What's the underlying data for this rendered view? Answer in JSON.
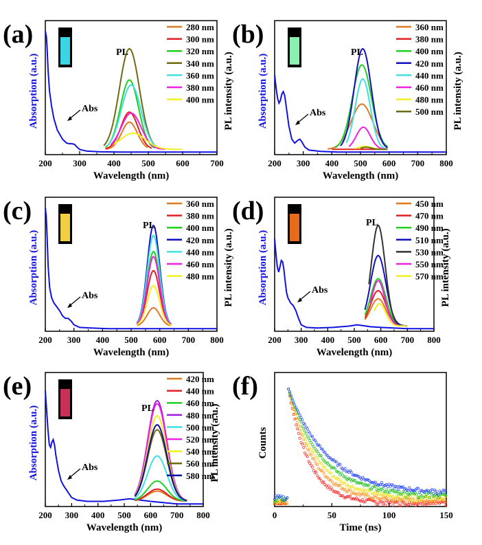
{
  "figure": {
    "panel_count": 6
  },
  "chart_data": [
    {
      "panel": "(a)",
      "type": "line",
      "xlabel": "Wavelength (nm)",
      "ylabel_left": "Absorption (a.u.)",
      "ylabel_right": "PL intensity (a.u.)",
      "xlim": [
        200,
        700
      ],
      "xticks": [
        200,
        300,
        400,
        500,
        600,
        700
      ],
      "annotations": [
        "Abs",
        "PL"
      ],
      "vial_color": "#3ad6e6",
      "abs": {
        "color": "#1212e0",
        "x": [
          200,
          203,
          205,
          208,
          212,
          218,
          225,
          235,
          250,
          262,
          270,
          278,
          285,
          292,
          300,
          320,
          360,
          420,
          500,
          600,
          700
        ],
        "y": [
          0.96,
          0.92,
          0.84,
          0.66,
          0.5,
          0.38,
          0.28,
          0.19,
          0.12,
          0.09,
          0.085,
          0.085,
          0.08,
          0.06,
          0.04,
          0.028,
          0.022,
          0.02,
          0.02,
          0.02,
          0.02
        ]
      },
      "pl_range": [
        370,
        600
      ],
      "series": [
        {
          "name": "280 nm",
          "color": "#e07820",
          "peak": 445,
          "height": 0.27,
          "start": 375,
          "end": 500
        },
        {
          "name": "300 nm",
          "color": "#e02020",
          "peak": 445,
          "height": 0.37,
          "start": 375,
          "end": 510
        },
        {
          "name": "320 nm",
          "color": "#20d020",
          "peak": 445,
          "height": 0.69,
          "start": 375,
          "end": 520
        },
        {
          "name": "340 nm",
          "color": "#6e6a10",
          "peak": 445,
          "height": 1.0,
          "start": 370,
          "end": 530
        },
        {
          "name": "360 nm",
          "color": "#40e0e0",
          "peak": 450,
          "height": 0.64,
          "start": 380,
          "end": 540
        },
        {
          "name": "380 nm",
          "color": "#f020e0",
          "peak": 450,
          "height": 0.36,
          "start": 390,
          "end": 550
        },
        {
          "name": "400 nm",
          "color": "#f0f020",
          "peak": 455,
          "height": 0.16,
          "start": 400,
          "end": 600
        }
      ]
    },
    {
      "panel": "(b)",
      "type": "line",
      "xlabel": "Wavelength (nm)",
      "ylabel_left": "Absorption (a.u.)",
      "ylabel_right": "PL intensity (a.u.)",
      "xlim": [
        200,
        800
      ],
      "xticks": [
        200,
        300,
        400,
        500,
        600,
        700,
        800
      ],
      "annotations": [
        "Abs",
        "PL"
      ],
      "vial_color": "#8af0b0",
      "abs": {
        "color": "#1212e0",
        "x": [
          200,
          205,
          210,
          215,
          220,
          225,
          230,
          235,
          240,
          250,
          260,
          270,
          280,
          288,
          295,
          305,
          320,
          360,
          420,
          500,
          600,
          700,
          800
        ],
        "y": [
          0.62,
          0.52,
          0.44,
          0.4,
          0.42,
          0.47,
          0.49,
          0.46,
          0.38,
          0.22,
          0.12,
          0.09,
          0.11,
          0.12,
          0.1,
          0.06,
          0.035,
          0.025,
          0.02,
          0.02,
          0.02,
          0.02,
          0.02
        ]
      },
      "pl_range": [
        380,
        600
      ],
      "series": [
        {
          "name": "360 nm",
          "color": "#e07820",
          "peak": 505,
          "height": 0.45,
          "start": 385,
          "end": 595
        },
        {
          "name": "380 nm",
          "color": "#e02020",
          "peak": 505,
          "height": 0.0,
          "start": 400,
          "end": 595
        },
        {
          "name": "400 nm",
          "color": "#20d020",
          "peak": 505,
          "height": 0.84,
          "start": 410,
          "end": 595
        },
        {
          "name": "420 nm",
          "color": "#1010c0",
          "peak": 508,
          "height": 1.0,
          "start": 430,
          "end": 595
        },
        {
          "name": "440 nm",
          "color": "#40e0e0",
          "peak": 508,
          "height": 0.7,
          "start": 450,
          "end": 595
        },
        {
          "name": "460 nm",
          "color": "#f020e0",
          "peak": 510,
          "height": 0.22,
          "start": 460,
          "end": 595
        },
        {
          "name": "480 nm",
          "color": "#f0f020",
          "peak": 515,
          "height": 0.03,
          "start": 480,
          "end": 595
        },
        {
          "name": "500 nm",
          "color": "#6e6a10",
          "peak": 520,
          "height": 0.02,
          "start": 500,
          "end": 595
        }
      ]
    },
    {
      "panel": "(c)",
      "type": "line",
      "xlabel": "Wavelength (nm)",
      "ylabel_left": "Absorption (a.u.)",
      "ylabel_right": "PL intensity (a.u.)",
      "xlim": [
        200,
        800
      ],
      "xticks": [
        200,
        300,
        400,
        500,
        600,
        700,
        800
      ],
      "annotations": [
        "Abs",
        "PL"
      ],
      "vial_color": "#f0d040",
      "abs": {
        "color": "#1212e0",
        "x": [
          200,
          203,
          206,
          210,
          215,
          222,
          230,
          240,
          250,
          260,
          270,
          280,
          290,
          300,
          320,
          360,
          420,
          500,
          600,
          700,
          800
        ],
        "y": [
          0.96,
          0.9,
          0.75,
          0.5,
          0.34,
          0.26,
          0.22,
          0.19,
          0.16,
          0.12,
          0.1,
          0.1,
          0.08,
          0.05,
          0.03,
          0.025,
          0.02,
          0.02,
          0.02,
          0.02,
          0.02
        ]
      },
      "pl_range": [
        520,
        640
      ],
      "series": [
        {
          "name": "360 nm",
          "color": "#e07820",
          "peak": 578,
          "height": 0.18,
          "start": 520,
          "end": 640
        },
        {
          "name": "380 nm",
          "color": "#e02020",
          "peak": 578,
          "height": 0.55,
          "start": 520,
          "end": 640
        },
        {
          "name": "400 nm",
          "color": "#20d020",
          "peak": 578,
          "height": 0.74,
          "start": 520,
          "end": 640
        },
        {
          "name": "420 nm",
          "color": "#1010c0",
          "peak": 578,
          "height": 1.0,
          "start": 520,
          "end": 640
        },
        {
          "name": "440 nm",
          "color": "#40e0e0",
          "peak": 578,
          "height": 0.9,
          "start": 520,
          "end": 640
        },
        {
          "name": "460 nm",
          "color": "#f020e0",
          "peak": 578,
          "height": 0.69,
          "start": 520,
          "end": 640
        },
        {
          "name": "480 nm",
          "color": "#f0f020",
          "peak": 578,
          "height": 0.4,
          "start": 520,
          "end": 640
        }
      ]
    },
    {
      "panel": "(d)",
      "type": "line",
      "xlabel": "Wavelength (nm)",
      "ylabel_left": "Absorption (a.u.)",
      "ylabel_right": "PL intensity (a.u.)",
      "xlim": [
        200,
        800
      ],
      "xticks": [
        200,
        300,
        400,
        500,
        600,
        700,
        800
      ],
      "annotations": [
        "Abs",
        "PL"
      ],
      "vial_color": "#e86a1a",
      "abs": {
        "color": "#1212e0",
        "x": [
          200,
          205,
          210,
          215,
          220,
          225,
          230,
          235,
          240,
          245,
          250,
          260,
          270,
          280,
          290,
          300,
          320,
          360,
          420,
          480,
          510,
          530,
          560,
          600,
          700,
          800
        ],
        "y": [
          0.72,
          0.6,
          0.5,
          0.46,
          0.5,
          0.55,
          0.54,
          0.48,
          0.38,
          0.3,
          0.26,
          0.22,
          0.2,
          0.16,
          0.1,
          0.05,
          0.03,
          0.025,
          0.03,
          0.04,
          0.05,
          0.045,
          0.035,
          0.03,
          0.02,
          0.02
        ]
      },
      "pl_range": [
        540,
        700
      ],
      "series": [
        {
          "name": "450 nm",
          "color": "#e07820",
          "peak": 590,
          "height": 0.27,
          "start": 540,
          "end": 700
        },
        {
          "name": "470 nm",
          "color": "#e02020",
          "peak": 590,
          "height": 0.35,
          "start": 540,
          "end": 700
        },
        {
          "name": "490 nm",
          "color": "#20d020",
          "peak": 590,
          "height": 0.47,
          "start": 540,
          "end": 700
        },
        {
          "name": "510 nm",
          "color": "#1010c0",
          "peak": 590,
          "height": 0.7,
          "start": 540,
          "end": 700
        },
        {
          "name": "530 nm",
          "color": "#333333",
          "peak": 590,
          "height": 1.0,
          "start": 555,
          "end": 700
        },
        {
          "name": "550 nm",
          "color": "#f020e0",
          "peak": 590,
          "height": 0.45,
          "start": 560,
          "end": 700
        },
        {
          "name": "570 nm",
          "color": "#f0f020",
          "peak": 595,
          "height": 0.22,
          "start": 575,
          "end": 700
        }
      ]
    },
    {
      "panel": "(e)",
      "type": "line",
      "xlabel": "Wavelength (nm)",
      "ylabel_left": "Absorption (a.u.)",
      "ylabel_right": "PL intensity (a.u.)",
      "xlim": [
        200,
        800
      ],
      "xticks": [
        200,
        300,
        400,
        500,
        600,
        700,
        800
      ],
      "annotations": [
        "Abs",
        "PL"
      ],
      "vial_color": "#c8305a",
      "abs": {
        "color": "#1212e0",
        "x": [
          200,
          205,
          210,
          215,
          220,
          225,
          230,
          235,
          240,
          250,
          260,
          270,
          280,
          290,
          300,
          320,
          360,
          420,
          480,
          520,
          560,
          600,
          650,
          700,
          750,
          800
        ],
        "y": [
          0.9,
          0.75,
          0.6,
          0.48,
          0.46,
          0.5,
          0.52,
          0.48,
          0.4,
          0.28,
          0.2,
          0.16,
          0.13,
          0.1,
          0.07,
          0.05,
          0.04,
          0.04,
          0.05,
          0.06,
          0.05,
          0.04,
          0.03,
          0.02,
          0.02,
          0.02
        ]
      },
      "pl_range": [
        540,
        740
      ],
      "series": [
        {
          "name": "420 nm",
          "color": "#e07820",
          "peak": 625,
          "height": 0.1,
          "start": 540,
          "end": 740
        },
        {
          "name": "440 nm",
          "color": "#e02020",
          "peak": 625,
          "height": 0.12,
          "start": 540,
          "end": 740
        },
        {
          "name": "460 nm",
          "color": "#20d020",
          "peak": 625,
          "height": 0.2,
          "start": 540,
          "end": 740
        },
        {
          "name": "480 nm",
          "color": "#a020e0",
          "peak": 625,
          "height": 1.0,
          "start": 540,
          "end": 740
        },
        {
          "name": "500 nm",
          "color": "#40e0e0",
          "peak": 625,
          "height": 0.45,
          "start": 540,
          "end": 740
        },
        {
          "name": "520 nm",
          "color": "#f020e0",
          "peak": 625,
          "height": 0.97,
          "start": 540,
          "end": 740
        },
        {
          "name": "540 nm",
          "color": "#f0f020",
          "peak": 625,
          "height": 0.85,
          "start": 540,
          "end": 740
        },
        {
          "name": "560 nm",
          "color": "#6e6a10",
          "peak": 625,
          "height": 0.71,
          "start": 540,
          "end": 740
        },
        {
          "name": "580 nm",
          "color": "#1010a0",
          "peak": 625,
          "height": 0.76,
          "start": 540,
          "end": 740
        }
      ]
    },
    {
      "panel": "(f)",
      "type": "scatter",
      "xlabel": "Time (ns)",
      "ylabel": "Counts",
      "xlim": [
        0,
        150
      ],
      "xticks": [
        0,
        50,
        100,
        150
      ],
      "rise_time": 12,
      "series": [
        {
          "color": "#ff2020",
          "lifetime": 18,
          "floor": 0.05
        },
        {
          "color": "#ff9020",
          "lifetime": 22,
          "floor": 0.09
        },
        {
          "color": "#f0e020",
          "lifetime": 25,
          "floor": 0.13
        },
        {
          "color": "#20c020",
          "lifetime": 29,
          "floor": 0.17
        },
        {
          "color": "#2040ff",
          "lifetime": 34,
          "floor": 0.21
        }
      ]
    }
  ]
}
